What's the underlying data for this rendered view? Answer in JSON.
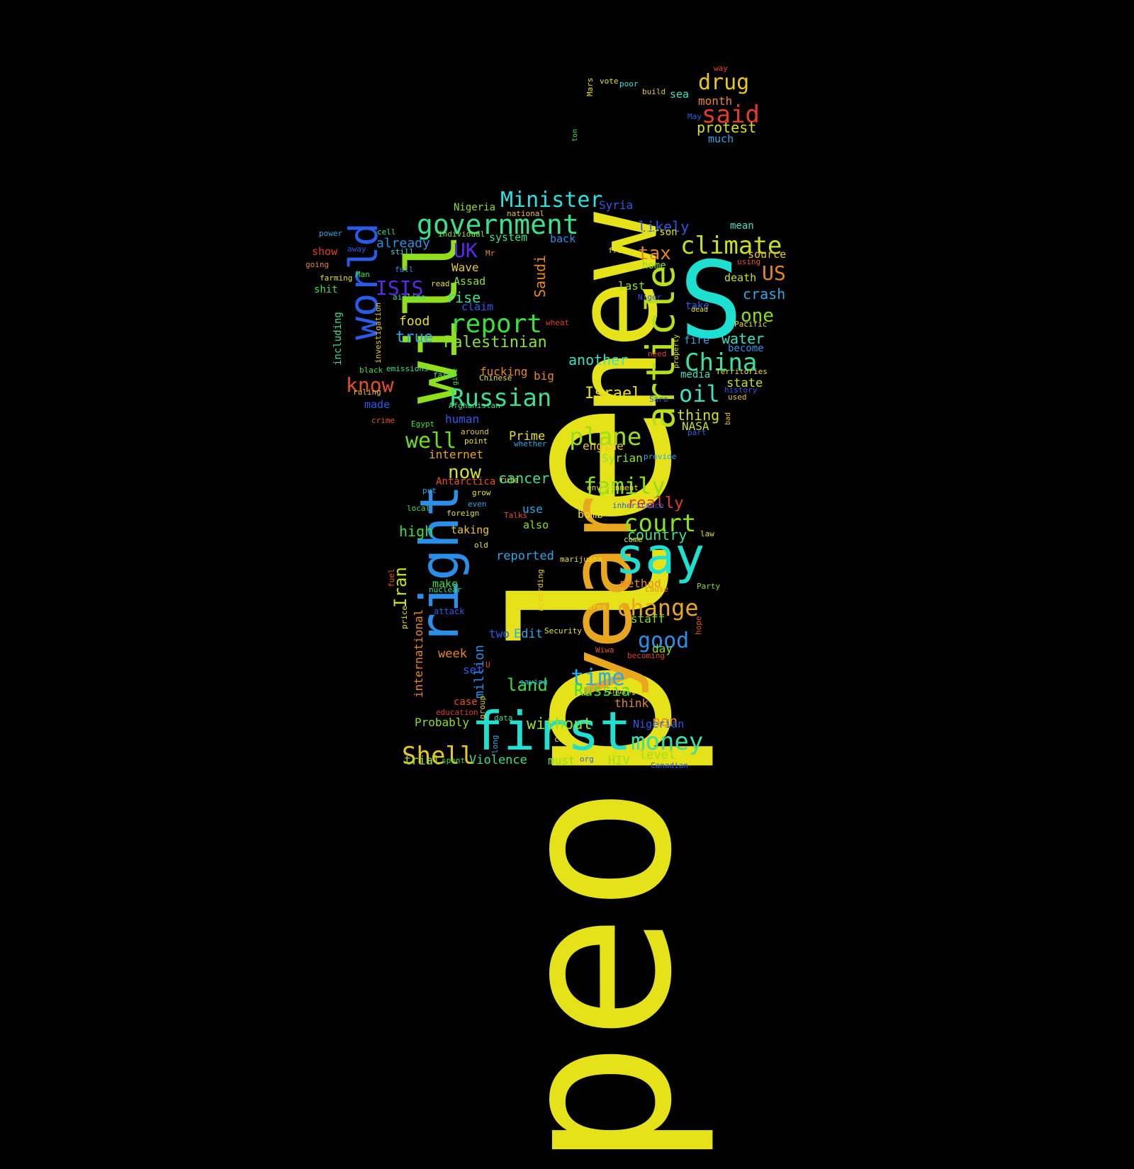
{
  "words": [
    {
      "text": "people",
      "color": "#e6e21a"
    },
    {
      "text": "S",
      "color": "#1ee0d0"
    },
    {
      "text": "new",
      "color": "#e6e21a"
    },
    {
      "text": "year",
      "color": "#e8a71e"
    },
    {
      "text": "will",
      "color": "#8fe01a"
    },
    {
      "text": "right",
      "color": "#2a8fe8"
    },
    {
      "text": "first",
      "color": "#1ee0d0"
    },
    {
      "text": "say",
      "color": "#1ee0d0"
    },
    {
      "text": "article",
      "color": "#b8e01a"
    },
    {
      "text": "world",
      "color": "#2a5ae8"
    },
    {
      "text": "government",
      "color": "#3ae08a"
    },
    {
      "text": "Minister",
      "color": "#2ae0e0"
    },
    {
      "text": "climate",
      "color": "#c8e01a"
    },
    {
      "text": "report",
      "color": "#3ae03a"
    },
    {
      "text": "Russian",
      "color": "#3ae08a"
    },
    {
      "text": "China",
      "color": "#3ae0a0"
    },
    {
      "text": "plane",
      "color": "#9ae01a"
    },
    {
      "text": "court",
      "color": "#8ae01a"
    },
    {
      "text": "change",
      "color": "#e8a71e"
    },
    {
      "text": "money",
      "color": "#3ae0a0"
    },
    {
      "text": "Shell",
      "color": "#e8c81e"
    },
    {
      "text": "family",
      "color": "#8ae01a"
    },
    {
      "text": "time",
      "color": "#2aa8e8"
    },
    {
      "text": "good",
      "color": "#2a8fe8"
    },
    {
      "text": "drug",
      "color": "#e8c81e"
    },
    {
      "text": "said",
      "color": "#e83a2a"
    },
    {
      "text": "protest",
      "color": "#d8e01a"
    },
    {
      "text": "UK",
      "color": "#5a2ae8"
    },
    {
      "text": "ISIS",
      "color": "#5a2ae8"
    },
    {
      "text": "tax",
      "color": "#e8881e"
    },
    {
      "text": "US",
      "color": "#e8881e"
    },
    {
      "text": "one",
      "color": "#8ae01a"
    },
    {
      "text": "crash",
      "color": "#2aa8e8"
    },
    {
      "text": "oil",
      "color": "#3ae0c0"
    },
    {
      "text": "Palestinian",
      "color": "#8ae03a"
    },
    {
      "text": "know",
      "color": "#e8501e"
    },
    {
      "text": "well",
      "color": "#6ae01a"
    },
    {
      "text": "Iran",
      "color": "#c8e01a"
    },
    {
      "text": "Israel",
      "color": "#e8e01a"
    },
    {
      "text": "water",
      "color": "#3ae0c0"
    },
    {
      "text": "country",
      "color": "#3ae08a"
    },
    {
      "text": "Russia",
      "color": "#3ae03a"
    },
    {
      "text": "land",
      "color": "#3ae03a"
    },
    {
      "text": "without",
      "color": "#9ae01a"
    },
    {
      "text": "now",
      "color": "#d8e01a"
    },
    {
      "text": "cancer",
      "color": "#3ae08a"
    },
    {
      "text": "really",
      "color": "#e83a2a"
    },
    {
      "text": "high",
      "color": "#3ae03a"
    },
    {
      "text": "international",
      "color": "#e8881e"
    },
    {
      "text": "million",
      "color": "#2a8fe8"
    },
    {
      "text": "true",
      "color": "#2aa8e8"
    },
    {
      "text": "another",
      "color": "#3ae0c0"
    },
    {
      "text": "thing",
      "color": "#d8e01a"
    },
    {
      "text": "likely",
      "color": "#2a5ae8"
    },
    {
      "text": "Saudi",
      "color": "#e8881e"
    },
    {
      "text": "rise",
      "color": "#3ae08a"
    },
    {
      "text": "food",
      "color": "#e8e01a"
    },
    {
      "text": "state",
      "color": "#c8e01a"
    },
    {
      "text": "non",
      "color": "#e8881e"
    },
    {
      "text": "week",
      "color": "#e8881e"
    },
    {
      "text": "two",
      "color": "#2a5ae8"
    },
    {
      "text": "Edit",
      "color": "#2aa8e8"
    },
    {
      "text": "day",
      "color": "#8ae01a"
    },
    {
      "text": "staff",
      "color": "#8ae01a"
    },
    {
      "text": "method",
      "color": "#e8881e"
    },
    {
      "text": "reported",
      "color": "#2aa8e8"
    },
    {
      "text": "set",
      "color": "#2a5ae8"
    },
    {
      "text": "level",
      "color": "#9ae01a"
    },
    {
      "text": "must",
      "color": "#8ae01a"
    },
    {
      "text": "HIV",
      "color": "#9ae01a"
    },
    {
      "text": "Violence",
      "color": "#3ae08a"
    },
    {
      "text": "trial",
      "color": "#8ae01a"
    },
    {
      "text": "Probably",
      "color": "#8ae01a"
    },
    {
      "text": "think",
      "color": "#e8881e"
    },
    {
      "text": "Nigerian",
      "color": "#2a5ae8"
    },
    {
      "text": "make",
      "color": "#3ae03a"
    },
    {
      "text": "taking",
      "color": "#e8c81e"
    },
    {
      "text": "use",
      "color": "#2aa8e8"
    },
    {
      "text": "also",
      "color": "#8ae01a"
    },
    {
      "text": "bomb",
      "color": "#e8e01a"
    },
    {
      "text": "Prime",
      "color": "#e8e01a"
    },
    {
      "text": "engine",
      "color": "#e8c81e"
    },
    {
      "text": "Syrian",
      "color": "#8ae03a"
    },
    {
      "text": "internet",
      "color": "#e8a71e"
    },
    {
      "text": "human",
      "color": "#2a5ae8"
    },
    {
      "text": "made",
      "color": "#2a5ae8"
    },
    {
      "text": "NASA",
      "color": "#c8e01a"
    },
    {
      "text": "fucking",
      "color": "#e8881e"
    },
    {
      "text": "big",
      "color": "#e8881e"
    },
    {
      "text": "media",
      "color": "#3ae0c0"
    },
    {
      "text": "fire",
      "color": "#2aa8e8"
    },
    {
      "text": "become",
      "color": "#2a8fe8"
    },
    {
      "text": "source",
      "color": "#e8c81e"
    },
    {
      "text": "death",
      "color": "#c8e01a"
    },
    {
      "text": "take",
      "color": "#2a5ae8"
    },
    {
      "text": "last",
      "color": "#8ae01a"
    },
    {
      "text": "home",
      "color": "#8ae01a"
    },
    {
      "text": "person",
      "color": "#d8e01a"
    },
    {
      "text": "mean",
      "color": "#3ae0c0"
    },
    {
      "text": "claim",
      "color": "#2a5ae8"
    },
    {
      "text": "Assad",
      "color": "#8ae03a"
    },
    {
      "text": "Wave",
      "color": "#e8c81e"
    },
    {
      "text": "back",
      "color": "#2a8fe8"
    },
    {
      "text": "system",
      "color": "#3ae08a"
    },
    {
      "text": "already",
      "color": "#2a8fe8"
    },
    {
      "text": "Syria",
      "color": "#2a5ae8"
    },
    {
      "text": "Nigeria",
      "color": "#8ae01a"
    },
    {
      "text": "show",
      "color": "#e83a2a"
    },
    {
      "text": "shit",
      "color": "#3ae03a"
    },
    {
      "text": "including",
      "color": "#3ae08a"
    },
    {
      "text": "month",
      "color": "#e8881e"
    },
    {
      "text": "much",
      "color": "#2aa8e8"
    },
    {
      "text": "sea",
      "color": "#3ae0c0"
    },
    {
      "text": "way",
      "color": "#e83a2a"
    },
    {
      "text": "build",
      "color": "#e8c81e"
    },
    {
      "text": "poor",
      "color": "#2ae0e0"
    },
    {
      "text": "vote",
      "color": "#e8e01a"
    },
    {
      "text": "Mars",
      "color": "#e8e01a"
    },
    {
      "text": "May",
      "color": "#2a5ae8"
    },
    {
      "text": "ton",
      "color": "#3ae03a"
    },
    {
      "text": "national",
      "color": "#e8c81e"
    },
    {
      "text": "power",
      "color": "#2aa8e8"
    },
    {
      "text": "cell",
      "color": "#3ae08a"
    },
    {
      "text": "individual",
      "color": "#8ae01a"
    },
    {
      "text": "Mr",
      "color": "#e8881e"
    },
    {
      "text": "away",
      "color": "#2a5ae8"
    },
    {
      "text": "still",
      "color": "#2ae0e0"
    },
    {
      "text": "going",
      "color": "#e8881e"
    },
    {
      "text": "full",
      "color": "#2a8fe8"
    },
    {
      "text": "Man",
      "color": "#3ae03a"
    },
    {
      "text": "farming",
      "color": "#e8e01a"
    },
    {
      "text": "read",
      "color": "#e8e01a"
    },
    {
      "text": "airline",
      "color": "#3ae08a"
    },
    {
      "text": "investigation",
      "color": "#e8c81e"
    },
    {
      "text": "free",
      "color": "#e8e01a"
    },
    {
      "text": "using",
      "color": "#e8501e"
    },
    {
      "text": "Niger",
      "color": "#2a5ae8"
    },
    {
      "text": "dead",
      "color": "#e8e01a"
    },
    {
      "text": "Pacific",
      "color": "#e8e01a"
    },
    {
      "text": "property",
      "color": "#e8e01a"
    },
    {
      "text": "need",
      "color": "#e83a2a"
    },
    {
      "text": "wheat",
      "color": "#e83a2a"
    },
    {
      "text": "Territories",
      "color": "#e8e01a"
    },
    {
      "text": "history",
      "color": "#2a5ae8"
    },
    {
      "text": "used",
      "color": "#e8c81e"
    },
    {
      "text": "bad",
      "color": "#e8c81e"
    },
    {
      "text": "part",
      "color": "#2a5ae8"
    },
    {
      "text": "black",
      "color": "#3ae03a"
    },
    {
      "text": "emissions",
      "color": "#3ae08a"
    },
    {
      "text": "farm",
      "color": "#3ae08a"
    },
    {
      "text": "give",
      "color": "#3ae03a"
    },
    {
      "text": "Chinese",
      "color": "#e8e01a"
    },
    {
      "text": "ruling",
      "color": "#e8c81e"
    },
    {
      "text": "Afghanistan",
      "color": "#3ae08a"
    },
    {
      "text": "brought",
      "color": "#e8e01a"
    },
    {
      "text": "Saro",
      "color": "#2a5ae8"
    },
    {
      "text": "crime",
      "color": "#e8501e"
    },
    {
      "text": "Egypt",
      "color": "#3ae03a"
    },
    {
      "text": "around",
      "color": "#e8c81e"
    },
    {
      "text": "point",
      "color": "#e8e01a"
    },
    {
      "text": "whether",
      "color": "#2aa8e8"
    },
    {
      "text": "provide",
      "color": "#2aa8e8"
    },
    {
      "text": "Antarctica",
      "color": "#e8501e"
    },
    {
      "text": "grow",
      "color": "#e8e01a"
    },
    {
      "text": "rule",
      "color": "#e8e01a"
    },
    {
      "text": "environment",
      "color": "#e8e01a"
    },
    {
      "text": "put",
      "color": "#2aa8e8"
    },
    {
      "text": "even",
      "color": "#2aa8e8"
    },
    {
      "text": "local",
      "color": "#3ae03a"
    },
    {
      "text": "foreign",
      "color": "#e8e01a"
    },
    {
      "text": "Talks",
      "color": "#e8501e"
    },
    {
      "text": "inheritance",
      "color": "#2a5ae8"
    },
    {
      "text": "law",
      "color": "#e8e01a"
    },
    {
      "text": "come",
      "color": "#e8e01a"
    },
    {
      "text": "old",
      "color": "#e8e01a"
    },
    {
      "text": "marijuana",
      "color": "#e8e01a"
    },
    {
      "text": "fuel",
      "color": "#e8501e"
    },
    {
      "text": "according",
      "color": "#e8c81e"
    },
    {
      "text": "nuclear",
      "color": "#3ae08a"
    },
    {
      "text": "cause",
      "color": "#e8881e"
    },
    {
      "text": "Party",
      "color": "#8ae01a"
    },
    {
      "text": "area",
      "color": "#e8e01a"
    },
    {
      "text": "price",
      "color": "#e8e01a"
    },
    {
      "text": "attack",
      "color": "#2a5ae8"
    },
    {
      "text": "hope",
      "color": "#e8501e"
    },
    {
      "text": "Security",
      "color": "#e8e01a"
    },
    {
      "text": "Wiwa",
      "color": "#e8501e"
    },
    {
      "text": "becoming",
      "color": "#e83a2a"
    },
    {
      "text": "U",
      "color": "#e8501e"
    },
    {
      "text": "saying",
      "color": "#2aa8e8"
    },
    {
      "text": "group",
      "color": "#e8c81e"
    },
    {
      "text": "finding",
      "color": "#e8e01a"
    },
    {
      "text": "case",
      "color": "#e8501e"
    },
    {
      "text": "education",
      "color": "#e83a2a"
    },
    {
      "text": "data",
      "color": "#3ae08a"
    },
    {
      "text": "cost",
      "color": "#e8e01a"
    },
    {
      "text": "long",
      "color": "#2aa8e8"
    },
    {
      "text": "spent",
      "color": "#3ae03a"
    },
    {
      "text": "org",
      "color": "#2a5ae8"
    },
    {
      "text": "Canadian",
      "color": "#2a5ae8"
    }
  ]
}
